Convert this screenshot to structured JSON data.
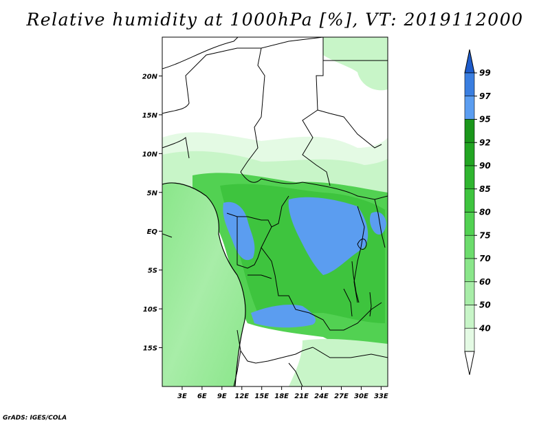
{
  "title": "Relative humidity at 1000hPa [%], VT: 2019112000",
  "credit": "GrADS: IGES/COLA",
  "chart_data": {
    "type": "heatmap",
    "title": "Relative humidity at 1000hPa [%], VT: 2019112000",
    "variable": "Relative humidity",
    "level": "1000hPa",
    "unit": "%",
    "valid_time": "2019112000",
    "xlim": [
      0,
      34
    ],
    "ylim": [
      -20,
      25
    ],
    "x_ticks": [
      3,
      6,
      9,
      12,
      15,
      18,
      21,
      24,
      27,
      30,
      33
    ],
    "x_tick_labels": [
      "3E",
      "6E",
      "9E",
      "12E",
      "15E",
      "18E",
      "21E",
      "24E",
      "27E",
      "30E",
      "33E"
    ],
    "y_ticks": [
      20,
      15,
      10,
      5,
      0,
      -5,
      -10,
      -15
    ],
    "y_tick_labels": [
      "20N",
      "15N",
      "10N",
      "5N",
      "EQ",
      "5S",
      "10S",
      "15S"
    ],
    "colorbar_levels": [
      40,
      50,
      60,
      70,
      75,
      80,
      85,
      90,
      92,
      95,
      97,
      99
    ],
    "colorbar_colors": [
      "#ffffff",
      "#e4fae4",
      "#c8f5c8",
      "#a8eda8",
      "#8ae68a",
      "#6cdc6c",
      "#52d152",
      "#3ec43e",
      "#2fb52f",
      "#22a522",
      "#1a961a",
      "#5b9df0",
      "#3a7ee0",
      "#1e5ccb"
    ],
    "colorbar_labels": [
      "40",
      "50",
      "60",
      "70",
      "75",
      "80",
      "85",
      "90",
      "92",
      "95",
      "97",
      "99"
    ],
    "grid": false
  },
  "colors": {
    "border": "#000000",
    "ocean_green": "#8ae68a",
    "blue_high": "#5b9df0"
  }
}
